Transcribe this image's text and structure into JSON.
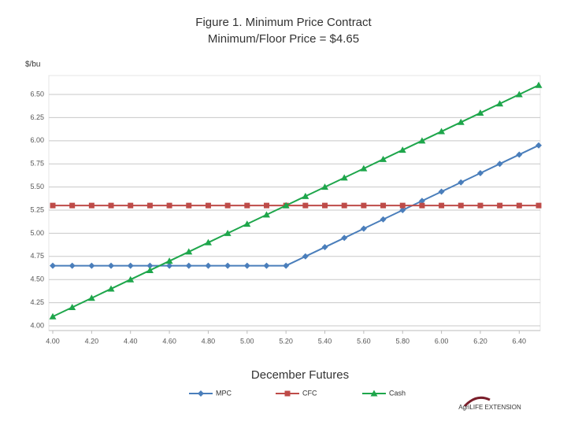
{
  "chart_data": {
    "type": "line",
    "title": "Figure 1. Minimum Price Contract",
    "subtitle": "Minimum/Floor Price = $4.65",
    "y_label": "$/bu",
    "x_label": "December Futures",
    "logo": "AgriLIFE EXTENSION",
    "x": [
      4.0,
      4.1,
      4.2,
      4.3,
      4.4,
      4.5,
      4.6,
      4.7,
      4.8,
      4.9,
      5.0,
      5.1,
      5.2,
      5.3,
      5.4,
      5.5,
      5.6,
      5.7,
      5.8,
      5.9,
      6.0,
      6.1,
      6.2,
      6.3,
      6.4,
      6.5
    ],
    "series": [
      {
        "name": "MPC",
        "color": "#4a7ebb",
        "marker": "diamond",
        "values": [
          4.65,
          4.65,
          4.65,
          4.65,
          4.65,
          4.65,
          4.65,
          4.65,
          4.65,
          4.65,
          4.65,
          4.65,
          4.65,
          4.75,
          4.85,
          4.95,
          5.05,
          5.15,
          5.25,
          5.35,
          5.45,
          5.55,
          5.65,
          5.75,
          5.85,
          5.95
        ]
      },
      {
        "name": "CFC",
        "color": "#be4b48",
        "marker": "square",
        "values": [
          5.3,
          5.3,
          5.3,
          5.3,
          5.3,
          5.3,
          5.3,
          5.3,
          5.3,
          5.3,
          5.3,
          5.3,
          5.3,
          5.3,
          5.3,
          5.3,
          5.3,
          5.3,
          5.3,
          5.3,
          5.3,
          5.3,
          5.3,
          5.3,
          5.3,
          5.3
        ]
      },
      {
        "name": "Cash",
        "color": "#1ea64b",
        "marker": "triangle",
        "values": [
          4.1,
          4.2,
          4.3,
          4.4,
          4.5,
          4.6,
          4.7,
          4.8,
          4.9,
          5.0,
          5.1,
          5.2,
          5.3,
          5.4,
          5.5,
          5.6,
          5.7,
          5.8,
          5.9,
          6.0,
          6.1,
          6.2,
          6.3,
          6.4,
          6.5,
          6.6
        ]
      }
    ],
    "xlim": [
      4.0,
      6.5
    ],
    "xticks": [
      {
        "value": 4.0,
        "label": "4.00"
      },
      {
        "value": 4.2,
        "label": "4.20"
      },
      {
        "value": 4.4,
        "label": "4.40"
      },
      {
        "value": 4.6,
        "label": "4.60"
      },
      {
        "value": 4.8,
        "label": "4.80"
      },
      {
        "value": 5.0,
        "label": "5.00"
      },
      {
        "value": 5.2,
        "label": "5.20"
      },
      {
        "value": 5.4,
        "label": "5.40"
      },
      {
        "value": 5.6,
        "label": "5.60"
      },
      {
        "value": 5.8,
        "label": "5.80"
      },
      {
        "value": 6.0,
        "label": "6.00"
      },
      {
        "value": 6.2,
        "label": "6.20"
      },
      {
        "value": 6.4,
        "label": "6.40"
      }
    ],
    "ylim": [
      4.0,
      6.7
    ],
    "yticks": [
      {
        "value": 4.0,
        "label": "4.00"
      },
      4.25,
      {
        "value": 4.5,
        "label": "4.50"
      },
      4.75,
      {
        "value": 5.0,
        "label": "5.00"
      },
      5.25,
      {
        "value": 5.5,
        "label": "5.50"
      },
      5.75,
      {
        "value": 6.0,
        "label": "6.00"
      },
      6.25,
      {
        "value": 6.5,
        "label": "6.50"
      }
    ],
    "grid": true,
    "legend": "bottom"
  }
}
